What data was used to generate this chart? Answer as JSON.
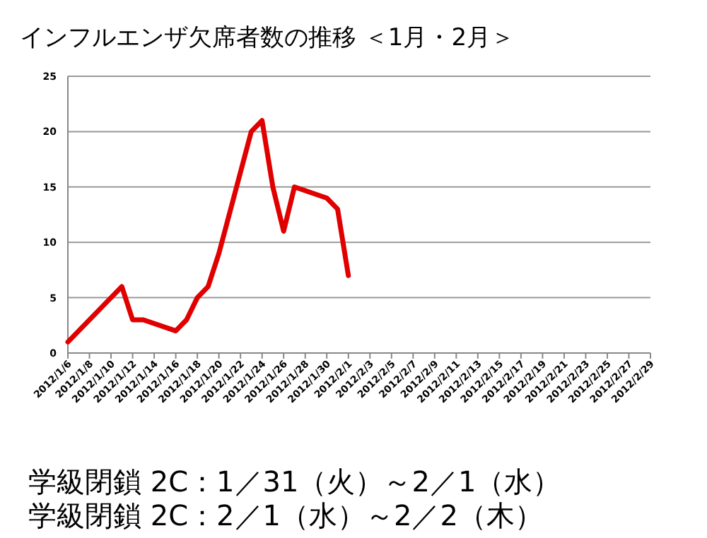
{
  "chart_data": {
    "type": "line",
    "title": "インフルエンザ欠席者数の推移 ＜1月・2月＞",
    "x": [
      "2012-01-06",
      "2012-01-11",
      "2012-01-12",
      "2012-01-13",
      "2012-01-16",
      "2012-01-17",
      "2012-01-18",
      "2012-01-19",
      "2012-01-20",
      "2012-01-23",
      "2012-01-24",
      "2012-01-25",
      "2012-01-26",
      "2012-01-27",
      "2012-01-30",
      "2012-01-31",
      "2012-02-01"
    ],
    "series": [
      {
        "color": "#e00000",
        "values": [
          1,
          6,
          3,
          3,
          2,
          3,
          5,
          6,
          9,
          20,
          21,
          15,
          11,
          15,
          14,
          13,
          7
        ]
      }
    ],
    "xlim": [
      "2012-01-06",
      "2012-02-29"
    ],
    "xticks": [
      {
        "value": "2012-01-06",
        "label": "2012/1/6"
      },
      {
        "value": "2012-01-08",
        "label": "2012/1/8"
      },
      {
        "value": "2012-01-10",
        "label": "2012/1/10"
      },
      {
        "value": "2012-01-12",
        "label": "2012/1/12"
      },
      {
        "value": "2012-01-14",
        "label": "2012/1/14"
      },
      {
        "value": "2012-01-16",
        "label": "2012/1/16"
      },
      {
        "value": "2012-01-18",
        "label": "2012/1/18"
      },
      {
        "value": "2012-01-20",
        "label": "2012/1/20"
      },
      {
        "value": "2012-01-22",
        "label": "2012/1/22"
      },
      {
        "value": "2012-01-24",
        "label": "2012/1/24"
      },
      {
        "value": "2012-01-26",
        "label": "2012/1/26"
      },
      {
        "value": "2012-01-28",
        "label": "2012/1/28"
      },
      {
        "value": "2012-01-30",
        "label": "2012/1/30"
      },
      {
        "value": "2012-02-01",
        "label": "2012/2/1"
      },
      {
        "value": "2012-02-03",
        "label": "2012/2/3"
      },
      {
        "value": "2012-02-05",
        "label": "2012/2/5"
      },
      {
        "value": "2012-02-07",
        "label": "2012/2/7"
      },
      {
        "value": "2012-02-09",
        "label": "2012/2/9"
      },
      {
        "value": "2012-02-11",
        "label": "2012/2/11"
      },
      {
        "value": "2012-02-13",
        "label": "2012/2/13"
      },
      {
        "value": "2012-02-15",
        "label": "2012/2/15"
      },
      {
        "value": "2012-02-17",
        "label": "2012/2/17"
      },
      {
        "value": "2012-02-19",
        "label": "2012/2/19"
      },
      {
        "value": "2012-02-21",
        "label": "2012/2/21"
      },
      {
        "value": "2012-02-23",
        "label": "2012/2/23"
      },
      {
        "value": "2012-02-25",
        "label": "2012/2/25"
      },
      {
        "value": "2012-02-27",
        "label": "2012/2/27"
      },
      {
        "value": "2012-02-29",
        "label": "2012/2/29"
      }
    ],
    "ylim": [
      0,
      25
    ],
    "yticks": [
      0,
      5,
      10,
      15,
      20,
      25
    ],
    "grid": "y",
    "marker": "none",
    "line_style": "solid",
    "annotations": [
      "学級閉鎖 2C：1／31（火）～2／1（水）",
      "学級閉鎖 2C：2／1（水）～2／2（木）"
    ]
  }
}
